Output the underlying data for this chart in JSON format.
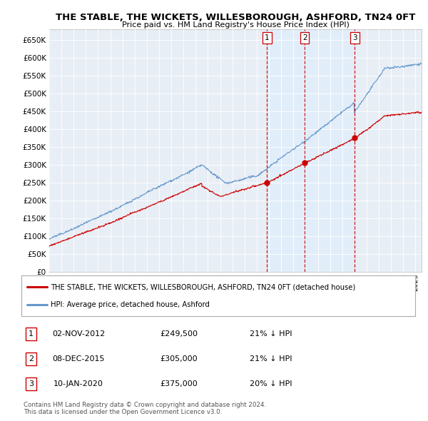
{
  "title": "THE STABLE, THE WICKETS, WILLESBOROUGH, ASHFORD, TN24 0FT",
  "subtitle": "Price paid vs. HM Land Registry's House Price Index (HPI)",
  "ylabel_ticks": [
    "£0",
    "£50K",
    "£100K",
    "£150K",
    "£200K",
    "£250K",
    "£300K",
    "£350K",
    "£400K",
    "£450K",
    "£500K",
    "£550K",
    "£600K",
    "£650K"
  ],
  "ytick_values": [
    0,
    50000,
    100000,
    150000,
    200000,
    250000,
    300000,
    350000,
    400000,
    450000,
    500000,
    550000,
    600000,
    650000
  ],
  "ylim": [
    0,
    680000
  ],
  "xlim_start": 1995.0,
  "xlim_end": 2025.5,
  "hpi_color": "#6699cc",
  "price_color": "#cc0000",
  "vline_color": "#cc0000",
  "shade_color": "#ddeeff",
  "bg_color": "#e8eef5",
  "plot_bg": "#ffffff",
  "grid_color": "#cccccc",
  "transactions": [
    {
      "label": "1",
      "date": 2012.84,
      "price": 249500,
      "text_date": "02-NOV-2012",
      "text_price": "£249,500",
      "text_hpi": "21% ↓ HPI"
    },
    {
      "label": "2",
      "date": 2015.93,
      "price": 305000,
      "text_date": "08-DEC-2015",
      "text_price": "£305,000",
      "text_hpi": "21% ↓ HPI"
    },
    {
      "label": "3",
      "date": 2020.03,
      "price": 375000,
      "text_date": "10-JAN-2020",
      "text_price": "£375,000",
      "text_hpi": "20% ↓ HPI"
    }
  ],
  "legend_property_label": "THE STABLE, THE WICKETS, WILLESBOROUGH, ASHFORD, TN24 0FT (detached house)",
  "legend_hpi_label": "HPI: Average price, detached house, Ashford",
  "footer1": "Contains HM Land Registry data © Crown copyright and database right 2024.",
  "footer2": "This data is licensed under the Open Government Licence v3.0."
}
